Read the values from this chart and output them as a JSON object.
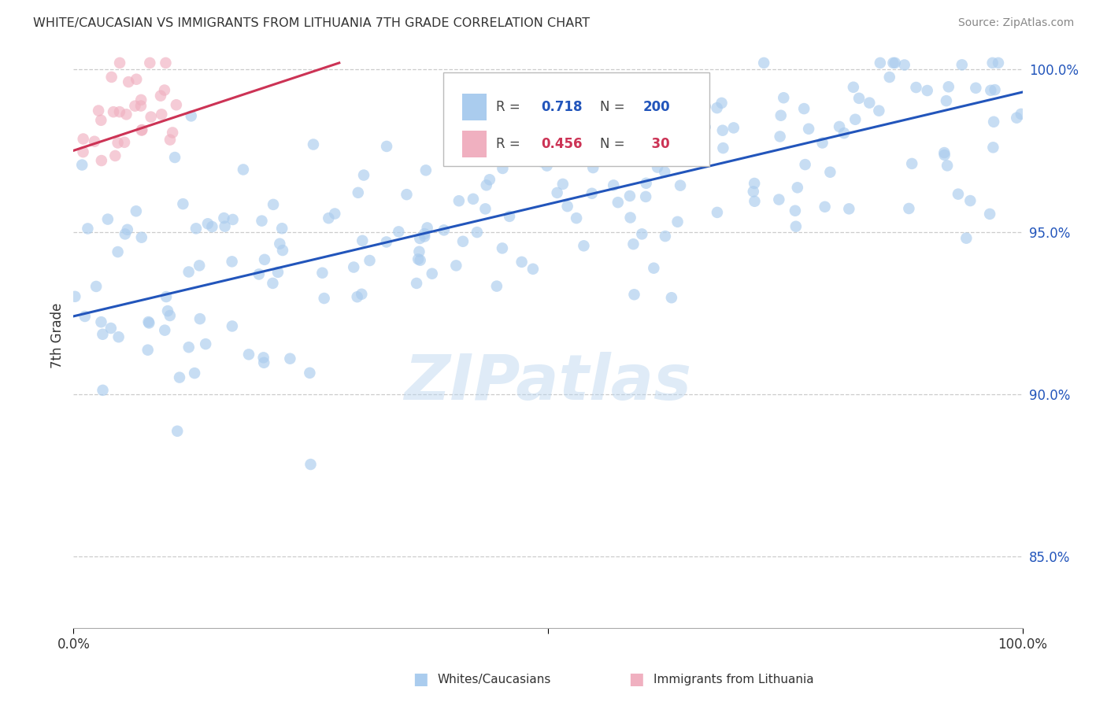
{
  "title": "WHITE/CAUCASIAN VS IMMIGRANTS FROM LITHUANIA 7TH GRADE CORRELATION CHART",
  "source": "Source: ZipAtlas.com",
  "ylabel": "7th Grade",
  "watermark": "ZIPatlas",
  "blue_R": 0.718,
  "blue_N": 200,
  "pink_R": 0.456,
  "pink_N": 30,
  "blue_color": "#aaccee",
  "blue_line_color": "#2255bb",
  "pink_color": "#f0b0c0",
  "pink_line_color": "#cc3355",
  "background_color": "#ffffff",
  "grid_color": "#cccccc",
  "title_color": "#333333",
  "legend_label_blue": "Whites/Caucasians",
  "legend_label_pink": "Immigrants from Lithuania",
  "blue_stat_color": "#2255bb",
  "pink_stat_color": "#cc3355",
  "xlim": [
    0.0,
    1.0
  ],
  "ylim": [
    0.828,
    1.008
  ],
  "yticks": [
    0.85,
    0.9,
    0.95,
    1.0
  ],
  "ytick_labels": [
    "85.0%",
    "90.0%",
    "95.0%",
    "100.0%"
  ],
  "blue_line_x": [
    0.0,
    1.0
  ],
  "blue_line_y": [
    0.924,
    0.993
  ],
  "pink_line_x": [
    0.0,
    0.28
  ],
  "pink_line_y": [
    0.975,
    1.002
  ]
}
